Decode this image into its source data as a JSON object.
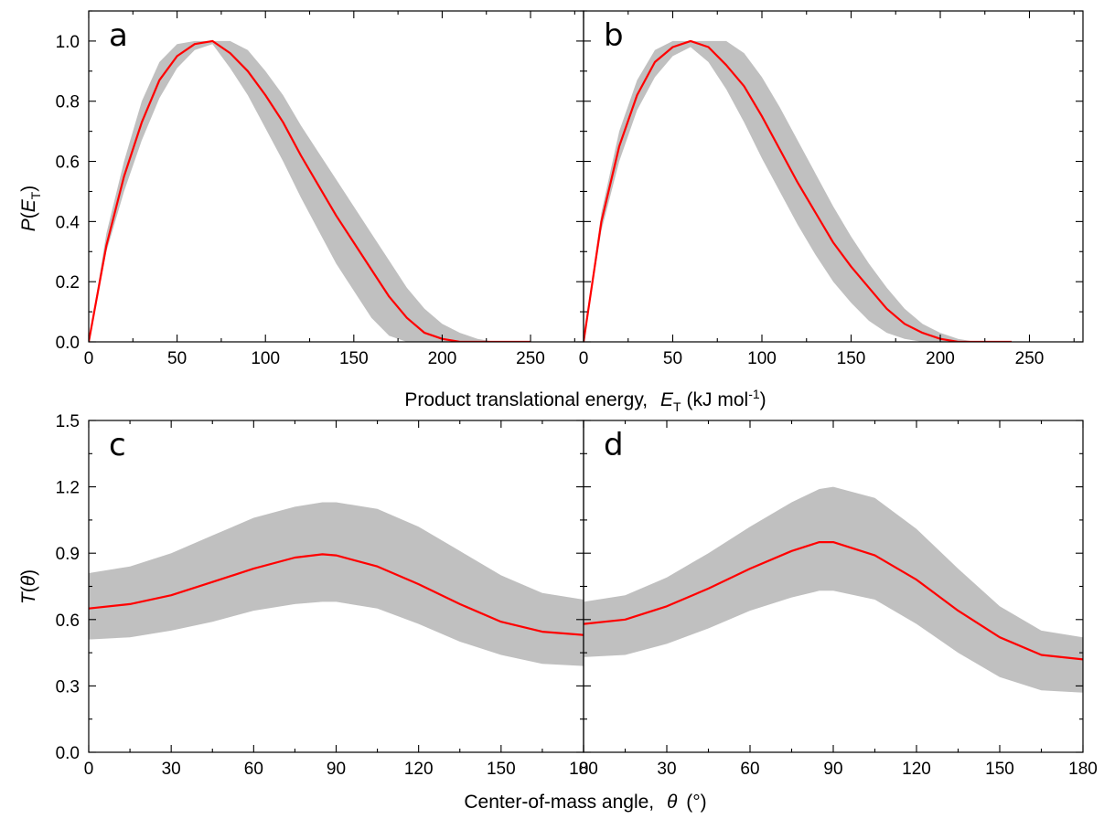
{
  "colors": {
    "line": "#ff0000",
    "band": "#c0c0c0",
    "axis": "#000000"
  },
  "chart_data": [
    {
      "type": "area",
      "panel": "a",
      "xlim": [
        0,
        280
      ],
      "ylim": [
        0,
        1.1
      ],
      "xticks": [
        0,
        50,
        100,
        150,
        200,
        250
      ],
      "yticks": [
        0.0,
        0.2,
        0.4,
        0.6,
        0.8,
        1.0
      ],
      "ylabel": "P(E_T)",
      "x": [
        0,
        10,
        20,
        30,
        40,
        50,
        60,
        70,
        80,
        90,
        100,
        110,
        120,
        130,
        140,
        150,
        160,
        170,
        180,
        190,
        200,
        210,
        220,
        230,
        240,
        250
      ],
      "best_fit": [
        0,
        0.32,
        0.55,
        0.73,
        0.87,
        0.95,
        0.99,
        1.0,
        0.96,
        0.9,
        0.82,
        0.73,
        0.62,
        0.52,
        0.42,
        0.33,
        0.24,
        0.15,
        0.08,
        0.03,
        0.01,
        0,
        0,
        0,
        0,
        0
      ],
      "band_upper": [
        0,
        0.36,
        0.6,
        0.8,
        0.93,
        0.99,
        1.0,
        1.0,
        1.0,
        0.97,
        0.9,
        0.82,
        0.72,
        0.63,
        0.54,
        0.45,
        0.36,
        0.27,
        0.18,
        0.11,
        0.06,
        0.03,
        0.01,
        0,
        0,
        0
      ],
      "band_lower": [
        0,
        0.3,
        0.5,
        0.67,
        0.81,
        0.91,
        0.97,
        0.99,
        0.91,
        0.82,
        0.71,
        0.6,
        0.48,
        0.37,
        0.26,
        0.17,
        0.08,
        0.02,
        0,
        0,
        0,
        0,
        0,
        0,
        0,
        0
      ]
    },
    {
      "type": "area",
      "panel": "b",
      "xlim": [
        0,
        280
      ],
      "ylim": [
        0,
        1.1
      ],
      "xticks": [
        0,
        50,
        100,
        150,
        200,
        250
      ],
      "yticks": [
        0.0,
        0.2,
        0.4,
        0.6,
        0.8,
        1.0
      ],
      "x": [
        0,
        10,
        20,
        30,
        40,
        50,
        60,
        70,
        80,
        90,
        100,
        110,
        120,
        130,
        140,
        150,
        160,
        170,
        180,
        190,
        200,
        210,
        220,
        230,
        240
      ],
      "best_fit": [
        0,
        0.4,
        0.65,
        0.82,
        0.93,
        0.98,
        1.0,
        0.98,
        0.92,
        0.85,
        0.75,
        0.64,
        0.53,
        0.43,
        0.33,
        0.25,
        0.18,
        0.11,
        0.06,
        0.03,
        0.01,
        0,
        0,
        0,
        0
      ],
      "band_upper": [
        0,
        0.43,
        0.7,
        0.87,
        0.97,
        1.0,
        1.0,
        1.0,
        1.0,
        0.96,
        0.88,
        0.78,
        0.67,
        0.56,
        0.45,
        0.35,
        0.26,
        0.18,
        0.11,
        0.06,
        0.03,
        0.01,
        0,
        0,
        0
      ],
      "band_lower": [
        0,
        0.37,
        0.6,
        0.77,
        0.88,
        0.95,
        0.98,
        0.93,
        0.84,
        0.73,
        0.61,
        0.5,
        0.39,
        0.29,
        0.2,
        0.13,
        0.07,
        0.03,
        0.01,
        0,
        0,
        0,
        0,
        0,
        0
      ]
    },
    {
      "type": "area",
      "panel": "c",
      "xlim": [
        0,
        180
      ],
      "ylim": [
        0,
        1.5
      ],
      "xticks": [
        0,
        30,
        60,
        90,
        120,
        150,
        180
      ],
      "yticks": [
        0.0,
        0.3,
        0.6,
        0.9,
        1.2,
        1.5
      ],
      "ylabel": "T(θ)",
      "x": [
        0,
        15,
        30,
        45,
        60,
        75,
        85,
        90,
        105,
        120,
        135,
        150,
        165,
        180
      ],
      "best_fit": [
        0.65,
        0.67,
        0.71,
        0.77,
        0.83,
        0.88,
        0.895,
        0.89,
        0.84,
        0.76,
        0.67,
        0.59,
        0.545,
        0.53
      ],
      "band_upper": [
        0.81,
        0.84,
        0.9,
        0.98,
        1.06,
        1.11,
        1.13,
        1.13,
        1.1,
        1.02,
        0.91,
        0.8,
        0.72,
        0.69
      ],
      "band_lower": [
        0.51,
        0.52,
        0.55,
        0.59,
        0.64,
        0.67,
        0.68,
        0.68,
        0.65,
        0.58,
        0.5,
        0.44,
        0.4,
        0.39
      ]
    },
    {
      "type": "area",
      "panel": "d",
      "xlim": [
        0,
        180
      ],
      "ylim": [
        0,
        1.5
      ],
      "xticks": [
        0,
        30,
        60,
        90,
        120,
        150,
        180
      ],
      "yticks": [
        0.0,
        0.3,
        0.6,
        0.9,
        1.2,
        1.5
      ],
      "x": [
        0,
        15,
        30,
        45,
        60,
        75,
        85,
        90,
        105,
        120,
        135,
        150,
        165,
        180
      ],
      "best_fit": [
        0.58,
        0.6,
        0.66,
        0.74,
        0.83,
        0.91,
        0.95,
        0.95,
        0.89,
        0.78,
        0.64,
        0.52,
        0.44,
        0.42
      ],
      "band_upper": [
        0.68,
        0.71,
        0.79,
        0.9,
        1.02,
        1.13,
        1.19,
        1.2,
        1.15,
        1.01,
        0.83,
        0.66,
        0.55,
        0.52
      ],
      "band_lower": [
        0.43,
        0.44,
        0.49,
        0.56,
        0.64,
        0.7,
        0.73,
        0.73,
        0.69,
        0.58,
        0.45,
        0.34,
        0.28,
        0.27
      ]
    }
  ],
  "axis_titles": {
    "top_x_prefix": "Product translational energy,",
    "top_x_symbol": "E",
    "top_x_subscript": "T",
    "top_x_unit_open": "(kJ mol",
    "top_x_unit_sup": "-1",
    "top_x_unit_close": ")",
    "bottom_x_prefix": "Center-of-mass angle,",
    "bottom_x_symbol": "θ",
    "bottom_x_unit": "(°)",
    "top_y_P": "P",
    "top_y_open": "(",
    "top_y_E": "E",
    "top_y_sub": "T",
    "top_y_close": ")",
    "bottom_y_T": "T",
    "bottom_y_open": "(",
    "bottom_y_theta": "θ",
    "bottom_y_close": ")"
  }
}
